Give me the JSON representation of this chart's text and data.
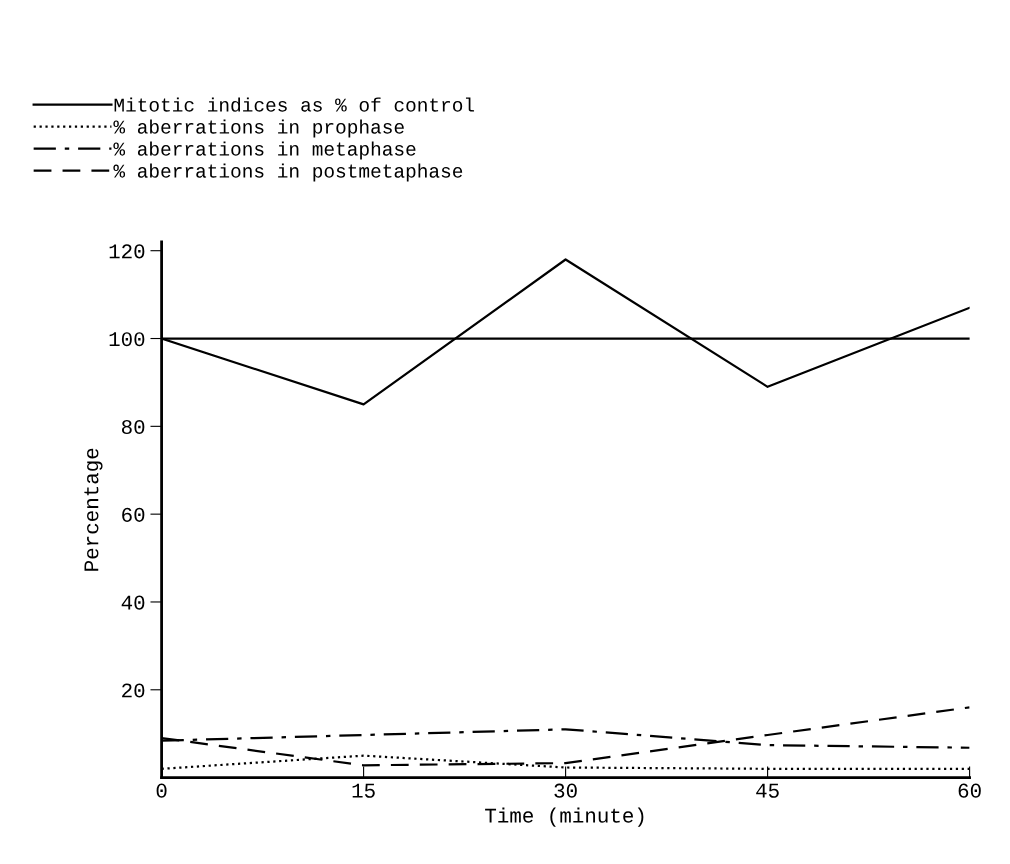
{
  "chart_data": {
    "type": "line",
    "xlabel": "Time (minute)",
    "ylabel": "Percentage",
    "x": [
      0,
      15,
      30,
      45,
      60
    ],
    "series": [
      {
        "name": "Mitotic indices as % of control",
        "color": "#000000",
        "line_style": "solid",
        "values": [
          100,
          85,
          118,
          89,
          107
        ]
      },
      {
        "name": "% aberrations in prophase",
        "color": "#000000",
        "line_style": "dotted",
        "values": [
          2,
          5,
          2.3,
          2,
          2
        ]
      },
      {
        "name": "% aberrations in metaphase",
        "color": "#000000",
        "line_style": "dashdot",
        "values": [
          8.4,
          9.7,
          11,
          7.4,
          6.8
        ]
      },
      {
        "name": "% aberrations in postmetaphase",
        "color": "#000000",
        "line_style": "dashed",
        "values": [
          9,
          2.8,
          3.3,
          9.7,
          16
        ]
      },
      {
        "type": "line",
        "color": "#000000",
        "line_style": "solid",
        "x": [
          0,
          60
        ],
        "values": [
          100,
          100
        ]
      }
    ],
    "xlim": [
      0,
      60
    ],
    "xticks": [
      0,
      15,
      30,
      45,
      60
    ],
    "ylim": [
      0,
      122
    ],
    "yticks": [
      20,
      40,
      60,
      80,
      100,
      120
    ],
    "grid": false,
    "legend": "top left",
    "marker": "none"
  }
}
